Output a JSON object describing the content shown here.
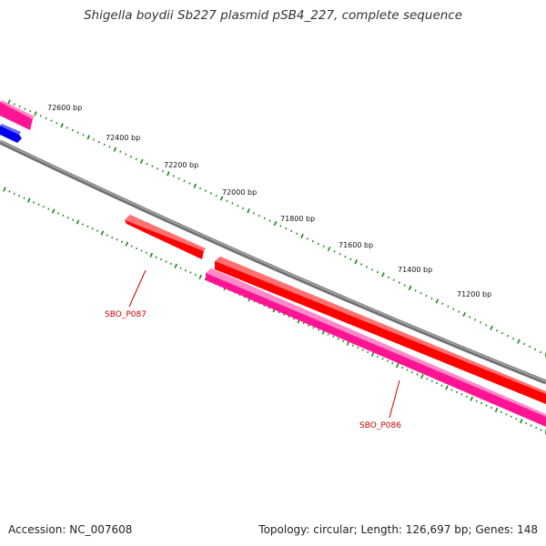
{
  "title": "Shigella boydii Sb227 plasmid pSB4_227, complete sequence",
  "footer": {
    "accession": "Accession: NC_007608",
    "topology": "Topology: circular; Length: 126,697 bp; Genes: 148"
  },
  "scale_ticks": [
    "72600 bp",
    "72400 bp",
    "72200 bp",
    "72000 bp",
    "71800 bp",
    "71600 bp",
    "71400 bp",
    "71200 bp"
  ],
  "genes": [
    {
      "name": "SBO_P087",
      "strand": "reverse",
      "color": "#ff0000"
    },
    {
      "name": "SBO_P086",
      "strand": "forward",
      "color": "#ff0000"
    }
  ],
  "colors": {
    "backbone": "#808080",
    "gene_red": "#ff0000",
    "gene_pink": "#ff1493",
    "gene_blue": "#0000ff",
    "tick_green": "#118811",
    "label_red": "#cc0000"
  }
}
